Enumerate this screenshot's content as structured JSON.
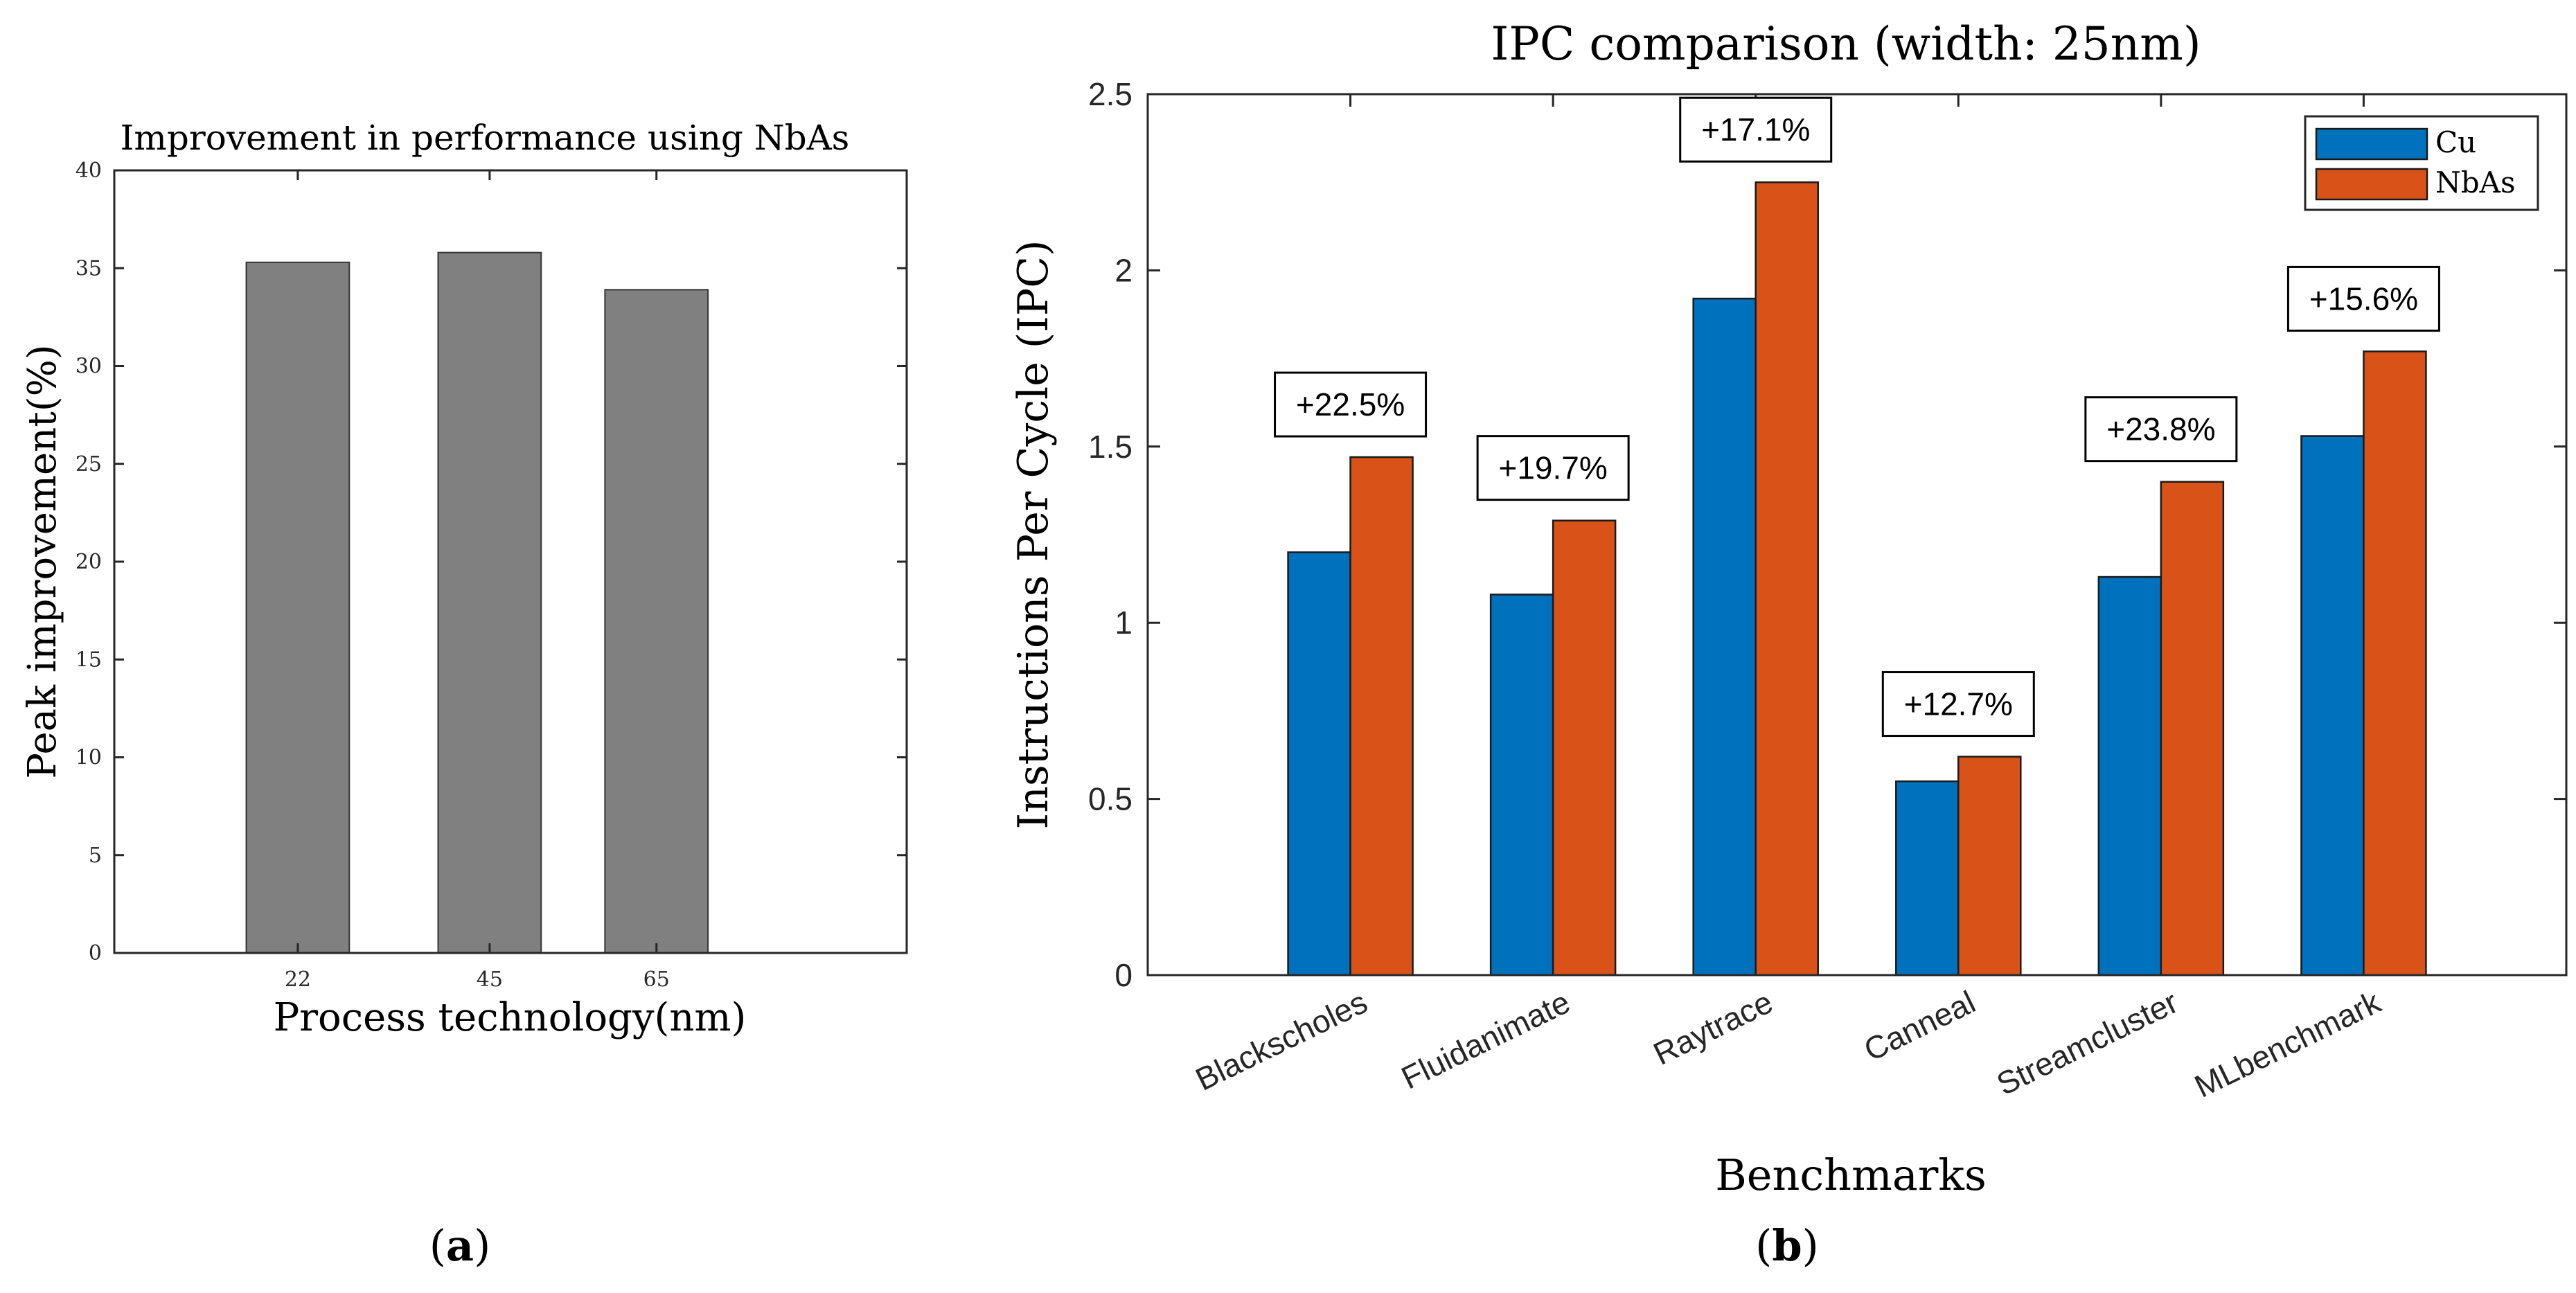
{
  "chart_data": [
    {
      "id": "a",
      "type": "bar",
      "title": "Improvement in performance using NbAs",
      "xlabel": "Process technology(nm)",
      "ylabel": "Peak improvement(%)",
      "categories": [
        "22",
        "45",
        "65"
      ],
      "category_positions": [
        22,
        45,
        65
      ],
      "xlim": [
        0,
        95
      ],
      "values": [
        35.3,
        35.8,
        33.9
      ],
      "ylim": [
        0,
        40
      ],
      "yticks": [
        "0",
        "5",
        "10",
        "15",
        "20",
        "25",
        "30",
        "35",
        "40"
      ],
      "bar_color": "#808080",
      "caption": "(a)",
      "caption_letter": "a"
    },
    {
      "id": "b",
      "type": "bar",
      "title": "IPC comparison (width: 25nm)",
      "xlabel": "Benchmarks",
      "ylabel": "Instructions Per Cycle (IPC)",
      "categories": [
        "Blackscholes",
        "Fluidanimate",
        "Raytrace",
        "Canneal",
        "Streamcluster",
        "MLbenchmark"
      ],
      "series": [
        {
          "name": "Cu",
          "color": "#0072BD",
          "values": [
            1.2,
            1.08,
            1.92,
            0.55,
            1.13,
            1.53
          ]
        },
        {
          "name": "NbAs",
          "color": "#D95319",
          "values": [
            1.47,
            1.29,
            2.25,
            0.62,
            1.4,
            1.77
          ]
        }
      ],
      "annotations": [
        "+22.5%",
        "+19.7%",
        "+17.1%",
        "+12.7%",
        "+23.8%",
        "+15.6%"
      ],
      "ylim": [
        0,
        2.5
      ],
      "yticks": [
        "0",
        "0.5",
        "1",
        "1.5",
        "2",
        "2.5"
      ],
      "legend_position": "top-right",
      "caption": "(b)",
      "caption_letter": "b"
    }
  ]
}
